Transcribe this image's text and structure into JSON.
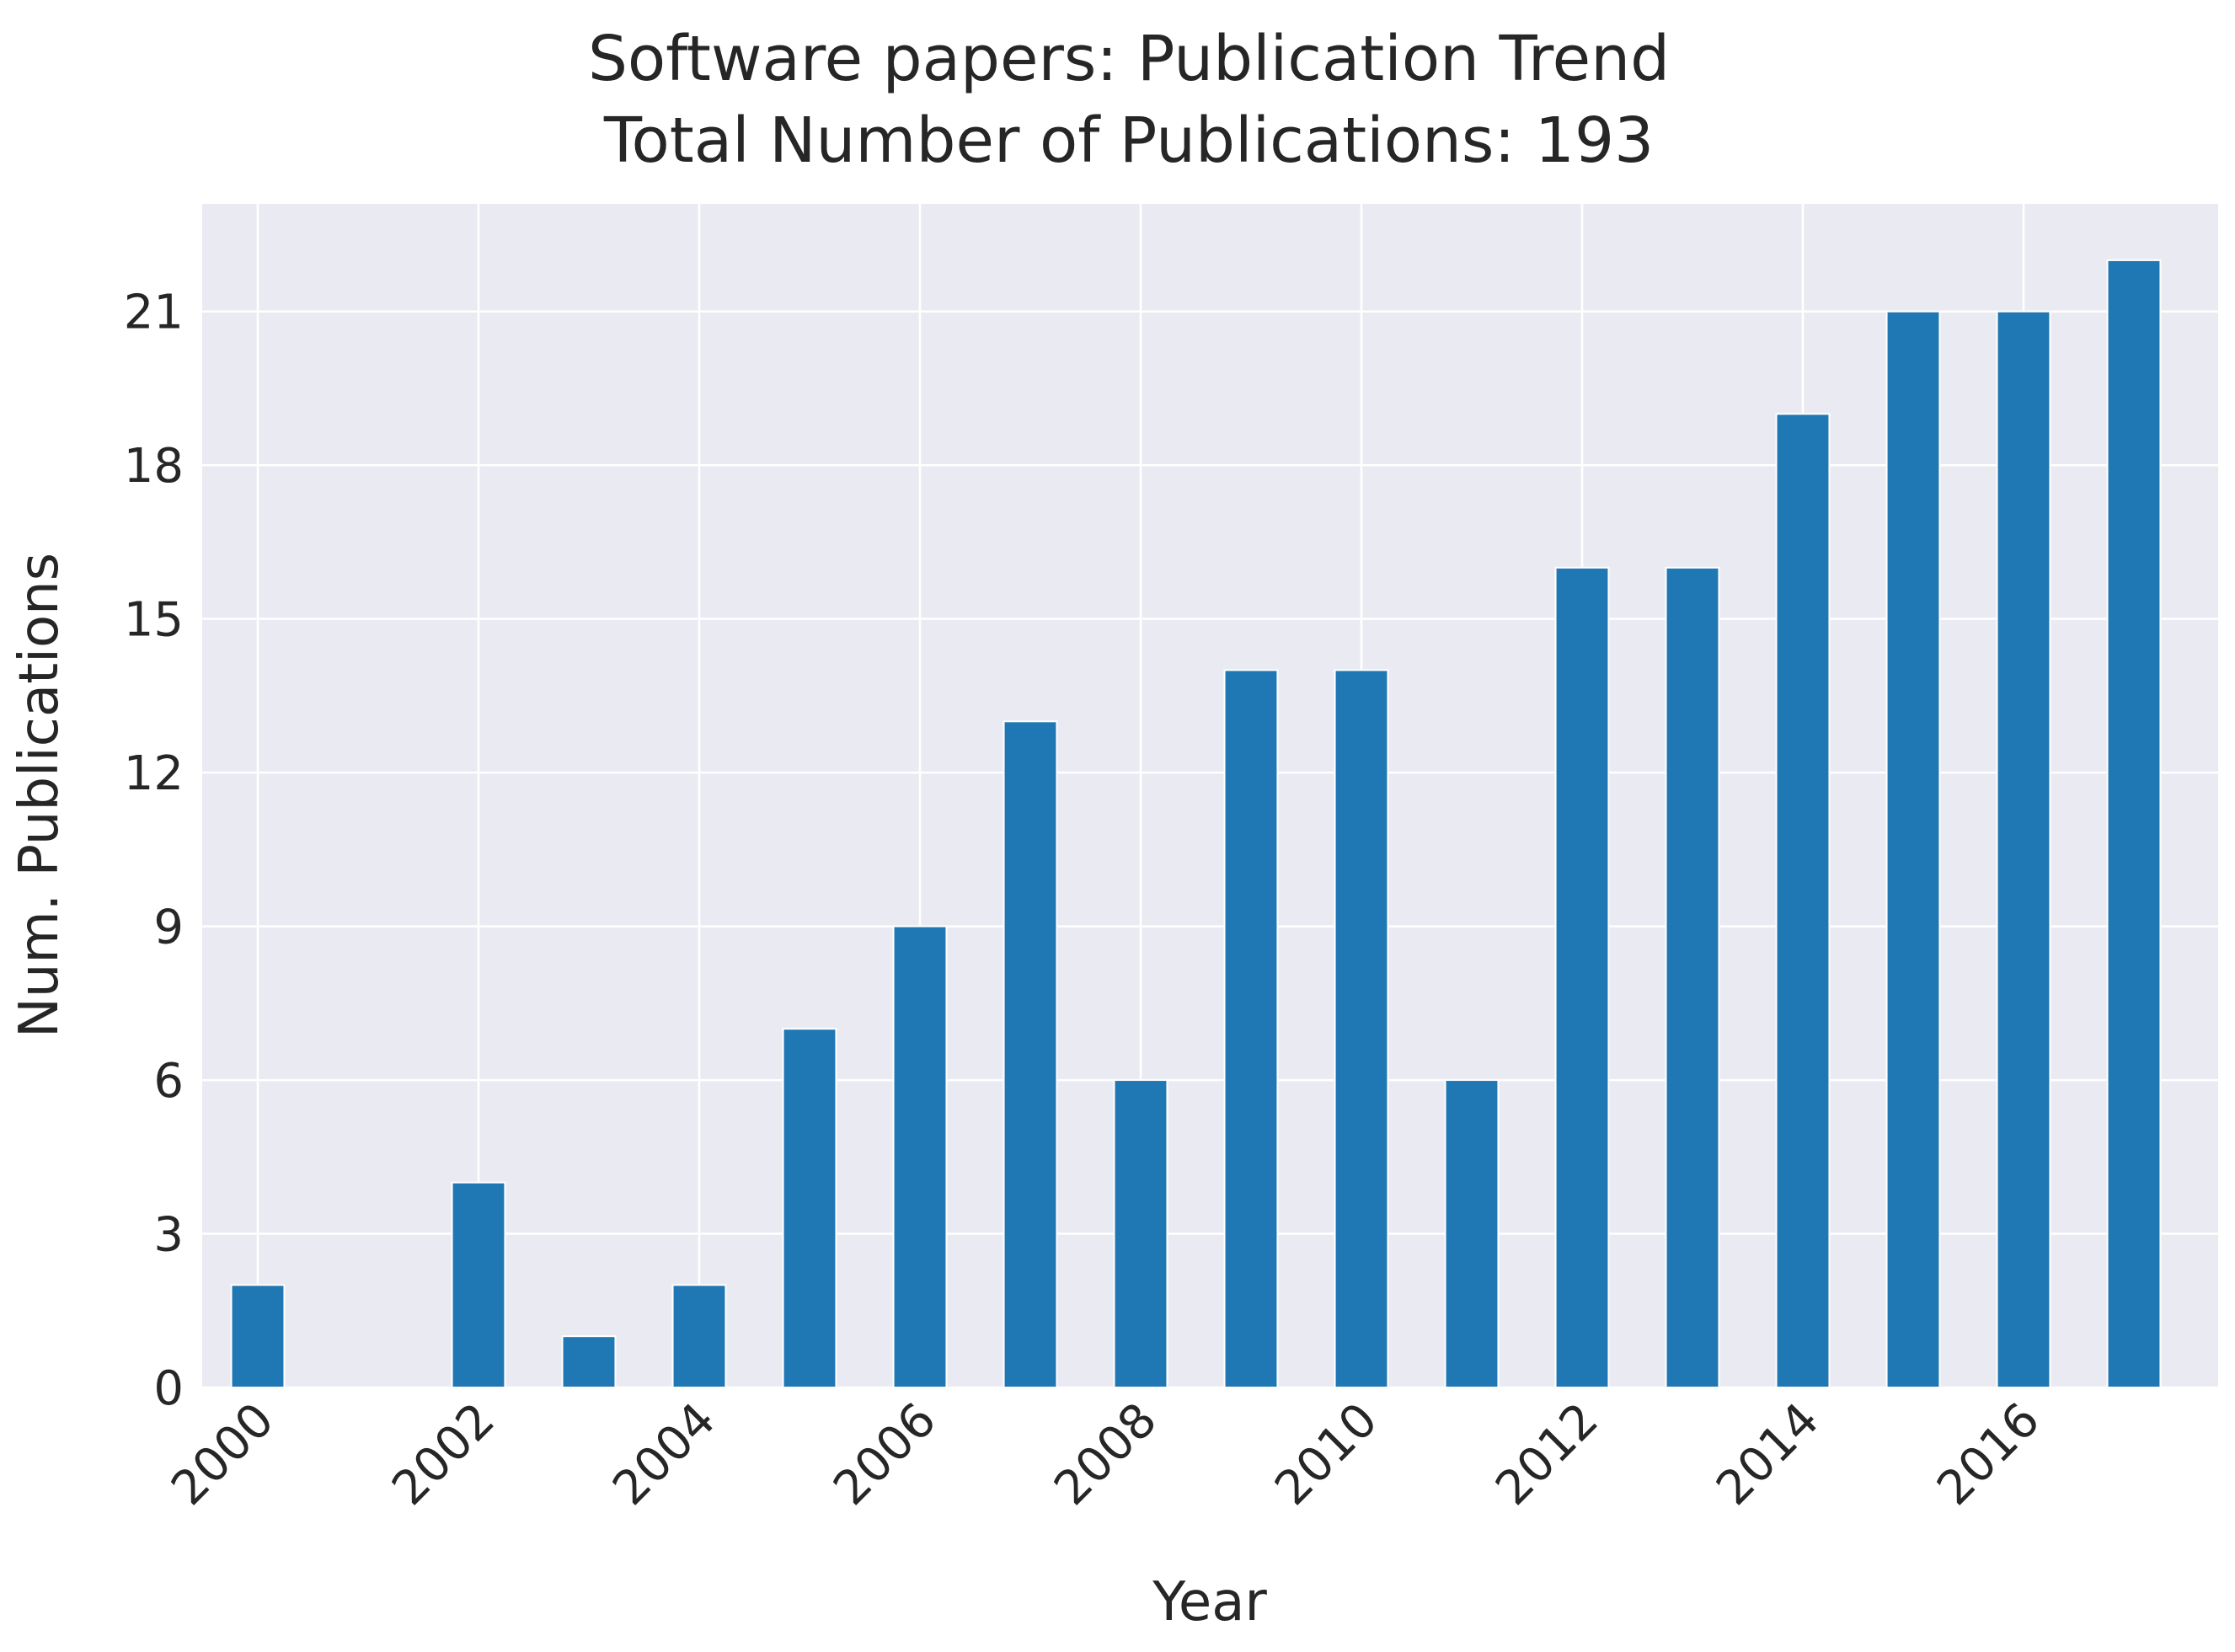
{
  "chart_data": {
    "type": "bar",
    "title": "Software papers: Publication Trend",
    "subtitle": "Total Number of Publications: 193",
    "xlabel": "Year",
    "ylabel": "Num. Publications",
    "categories": [
      "2000",
      "2001",
      "2002",
      "2003",
      "2004",
      "2005",
      "2006",
      "2007",
      "2008",
      "2009",
      "2010",
      "2011",
      "2012",
      "2013",
      "2014",
      "2015",
      "2016",
      "2017"
    ],
    "values": [
      2,
      0,
      4,
      1,
      2,
      7,
      9,
      13,
      6,
      14,
      14,
      6,
      16,
      16,
      19,
      21,
      21,
      22
    ],
    "xticks": [
      "2000",
      "2002",
      "2004",
      "2006",
      "2008",
      "2010",
      "2012",
      "2014",
      "2016"
    ],
    "yticks": [
      0,
      3,
      6,
      9,
      12,
      15,
      18,
      21
    ],
    "ylim": [
      0,
      23.1
    ],
    "grid": true,
    "colors": {
      "bar": "#1f77b4",
      "background": "#eaeaf2",
      "grid": "#ffffff",
      "text": "#262626"
    }
  }
}
